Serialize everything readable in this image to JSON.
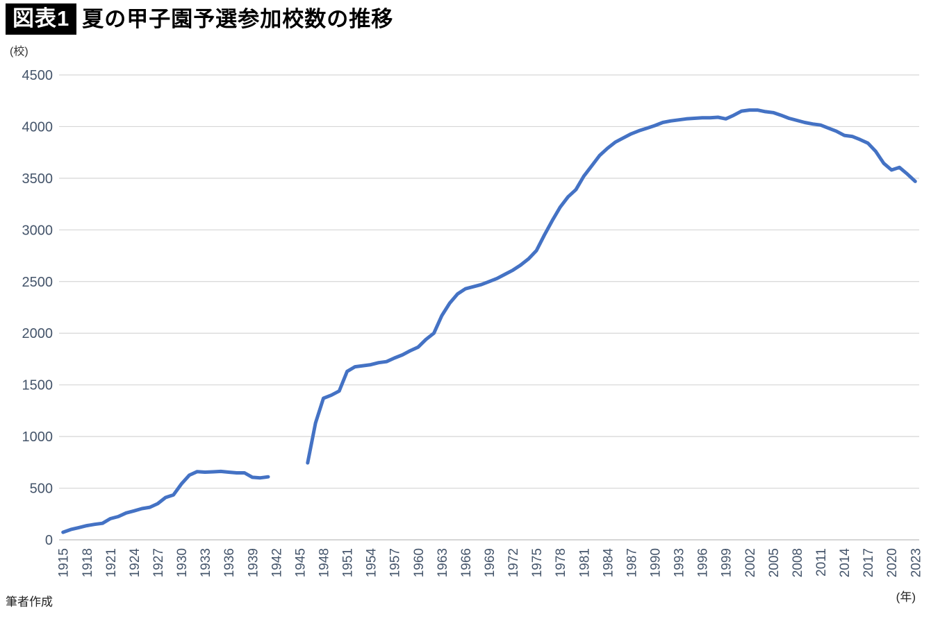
{
  "header": {
    "badge": "図表1",
    "title": "夏の甲子園予選参加校数の推移"
  },
  "footer": {
    "source": "筆者作成"
  },
  "chart_data": {
    "type": "line",
    "title": "夏の甲子園予選参加校数の推移",
    "y_unit_label": "(校)",
    "x_unit_label": "(年)",
    "ylim": [
      0,
      4500
    ],
    "ytick_interval": 500,
    "yticks": [
      0,
      500,
      1000,
      1500,
      2000,
      2500,
      3000,
      3500,
      4000,
      4500
    ],
    "xticks": [
      1915,
      1918,
      1921,
      1924,
      1927,
      1930,
      1933,
      1936,
      1939,
      1942,
      1945,
      1948,
      1951,
      1954,
      1957,
      1960,
      1963,
      1966,
      1969,
      1972,
      1975,
      1978,
      1981,
      1984,
      1987,
      1990,
      1993,
      1996,
      1999,
      2002,
      2005,
      2008,
      2011,
      2014,
      2017,
      2020,
      2023
    ],
    "grid_on": true,
    "legend": null,
    "line_color": "#4472C4",
    "grid_color": "#D6D6D6",
    "axis_label_color": "#44546A",
    "gap_years": [
      1942,
      1943,
      1944,
      1945
    ],
    "series": [
      {
        "name": "参加校数",
        "years": [
          1915,
          1916,
          1917,
          1918,
          1919,
          1920,
          1921,
          1922,
          1923,
          1924,
          1925,
          1926,
          1927,
          1928,
          1929,
          1930,
          1931,
          1932,
          1933,
          1934,
          1935,
          1936,
          1937,
          1938,
          1939,
          1940,
          1941,
          1942,
          1943,
          1944,
          1945,
          1946,
          1947,
          1948,
          1949,
          1950,
          1951,
          1952,
          1953,
          1954,
          1955,
          1956,
          1957,
          1958,
          1959,
          1960,
          1961,
          1962,
          1963,
          1964,
          1965,
          1966,
          1967,
          1968,
          1969,
          1970,
          1971,
          1972,
          1973,
          1974,
          1975,
          1976,
          1977,
          1978,
          1979,
          1980,
          1981,
          1982,
          1983,
          1984,
          1985,
          1986,
          1987,
          1988,
          1989,
          1990,
          1991,
          1992,
          1993,
          1994,
          1995,
          1996,
          1997,
          1998,
          1999,
          2000,
          2001,
          2002,
          2003,
          2004,
          2005,
          2006,
          2007,
          2008,
          2009,
          2010,
          2011,
          2012,
          2013,
          2014,
          2015,
          2016,
          2017,
          2018,
          2019,
          2020,
          2021,
          2022,
          2023
        ],
        "values": [
          73,
          100,
          118,
          137,
          150,
          160,
          205,
          225,
          260,
          280,
          302,
          315,
          350,
          410,
          435,
          540,
          625,
          660,
          655,
          658,
          662,
          655,
          648,
          648,
          605,
          600,
          610,
          null,
          null,
          null,
          null,
          745,
          1130,
          1370,
          1400,
          1440,
          1630,
          1675,
          1685,
          1695,
          1715,
          1725,
          1760,
          1790,
          1830,
          1865,
          1940,
          2000,
          2170,
          2290,
          2380,
          2430,
          2450,
          2470,
          2500,
          2530,
          2570,
          2610,
          2660,
          2720,
          2800,
          2950,
          3090,
          3220,
          3320,
          3390,
          3520,
          3620,
          3720,
          3790,
          3850,
          3890,
          3930,
          3960,
          3985,
          4010,
          4040,
          4055,
          4065,
          4075,
          4080,
          4085,
          4085,
          4090,
          4075,
          4110,
          4150,
          4160,
          4160,
          4145,
          4135,
          4110,
          4080,
          4060,
          4040,
          4025,
          4015,
          3985,
          3955,
          3915,
          3905,
          3875,
          3840,
          3760,
          3645,
          3580,
          3605,
          3540,
          3470
        ]
      }
    ]
  }
}
